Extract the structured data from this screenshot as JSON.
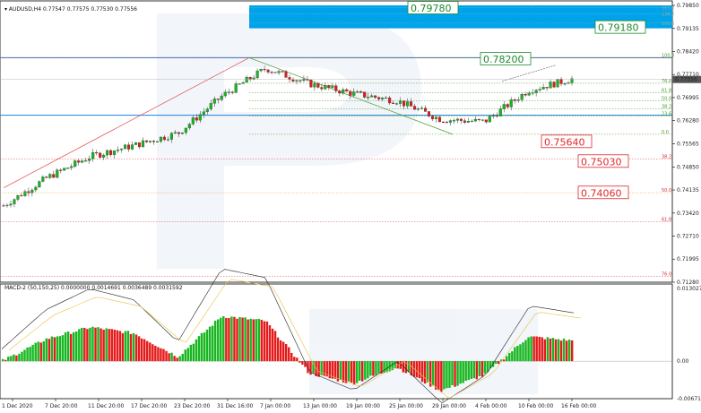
{
  "header": {
    "symbol": "AUDUSD,H4",
    "ohlc": "0.77547 0.77575 0.77530 0.77556"
  },
  "macd_header": "MACD-2 (50,150,25) 0.0000000 0.0014691 0.0036489 0.0031592",
  "current_price": "0.77556",
  "price_axis": [
    "0.79850",
    "0.79135",
    "0.78420",
    "0.77710",
    "0.76995",
    "0.76280",
    "0.75565",
    "0.74850",
    "0.74135",
    "0.73420",
    "0.72710",
    "0.71995",
    "0.71280"
  ],
  "macd_axis": [
    "0.0130275",
    "0.00",
    "-0.0067181"
  ],
  "time_axis": [
    "1 Dec 2020",
    "7 Dec 20:00",
    "11 Dec 20:00",
    "17 Dec 20:00",
    "23 Dec 20:00",
    "31 Dec 16:00",
    "7 Jan 00:00",
    "13 Jan 00:00",
    "19 Jan 00:00",
    "25 Jan 00:00",
    "29 Jan 00:00",
    "4 Feb 00:00",
    "10 Feb 00:00",
    "16 Feb 00:00"
  ],
  "boxes": [
    {
      "label": "0.79780",
      "color": "#1f8a2e"
    },
    {
      "label": "0.79180",
      "color": "#1f8a2e"
    },
    {
      "label": "0.78200",
      "color": "#1f8a2e"
    },
    {
      "label": "0.75640",
      "color": "#e2262a"
    },
    {
      "label": "0.75030",
      "color": "#e2262a"
    },
    {
      "label": "0.74060",
      "color": "#e2262a"
    }
  ],
  "fib_upper_levels": [
    "161.8",
    "138.2",
    "100.0"
  ],
  "fib_main_levels": [
    "100.0",
    "76.0",
    "61.8",
    "50.0",
    "38.2",
    "23.6",
    "0.0"
  ],
  "fib_lower_levels": [
    "38.2",
    "50.0",
    "61.8",
    "76.0"
  ],
  "colors": {
    "bull": "#16b71e",
    "bear": "#e51a1a",
    "target_zone": "#00a2e8",
    "support": "#1f7fd6"
  },
  "chart_data": {
    "type": "candlestick",
    "instrument": "AUDUSD",
    "timeframe": "H4",
    "last": 0.77556,
    "ylim": [
      0.7128,
      0.7985
    ],
    "key_levels": [
      0.7978,
      0.7918,
      0.782,
      0.7564,
      0.7503,
      0.7406
    ],
    "x": [
      "1 Dec 2020",
      "7 Dec 20:00",
      "11 Dec 20:00",
      "17 Dec 20:00",
      "23 Dec 20:00",
      "31 Dec 16:00",
      "7 Jan 00:00",
      "13 Jan 00:00",
      "19 Jan 00:00",
      "25 Jan 00:00",
      "29 Jan 00:00",
      "4 Feb 00:00",
      "10 Feb 00:00",
      "16 Feb 00:00"
    ],
    "close": [
      0.7365,
      0.7452,
      0.7518,
      0.7552,
      0.759,
      0.7705,
      0.779,
      0.7742,
      0.7712,
      0.769,
      0.7632,
      0.7625,
      0.7722,
      0.7757
    ],
    "macd_histogram": [
      0.0001,
      0.004,
      0.0061,
      0.005,
      0.0008,
      0.0081,
      0.0072,
      -0.0022,
      -0.004,
      -0.0011,
      -0.0053,
      -0.0025,
      0.0044,
      0.0037
    ]
  }
}
